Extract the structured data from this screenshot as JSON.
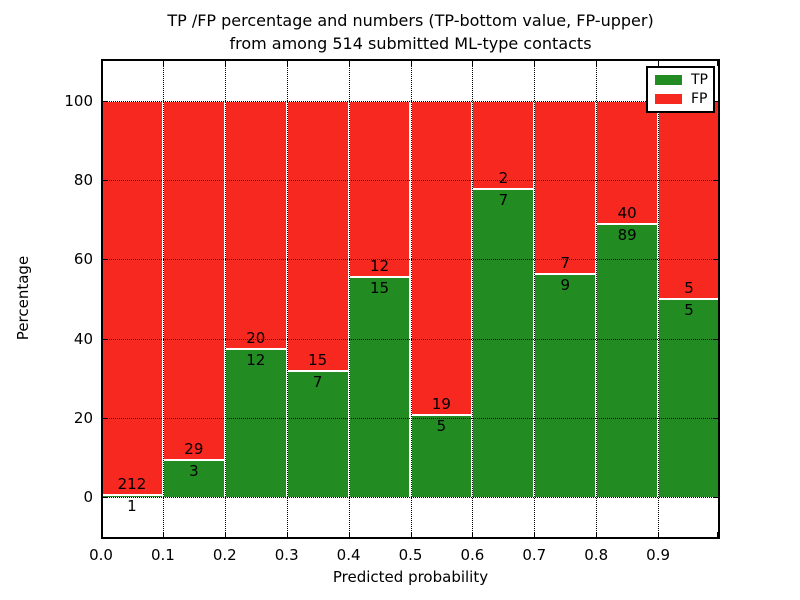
{
  "chart_data": {
    "type": "bar",
    "stacked": true,
    "title_line1": "TP /FP percentage and numbers (TP-bottom value, FP-upper)",
    "title_line2": "from among 514 submitted ML-type contacts",
    "xlabel": "Predicted probability",
    "ylabel": "Percentage",
    "x_tick_labels": [
      "0.0",
      "0.1",
      "0.2",
      "0.3",
      "0.4",
      "0.5",
      "0.6",
      "0.7",
      "0.8",
      "0.9"
    ],
    "y_ticks": [
      0,
      20,
      40,
      60,
      80,
      100
    ],
    "ylim": [
      -10.5,
      110.5
    ],
    "xlim": [
      0.0,
      1.0
    ],
    "bin_width": 0.1,
    "grid_style": "dotted",
    "bar_edge_color": "#ffffff",
    "annotation_note": "TP-bottom value, FP-upper",
    "legend": {
      "position": "upper-right",
      "entries": [
        {
          "label": "TP",
          "color": "#228b22"
        },
        {
          "label": "FP",
          "color": "#f7281f"
        }
      ]
    },
    "bins": [
      {
        "x0": 0.0,
        "tp": 1,
        "fp": 212
      },
      {
        "x0": 0.1,
        "tp": 3,
        "fp": 29
      },
      {
        "x0": 0.2,
        "tp": 12,
        "fp": 20
      },
      {
        "x0": 0.3,
        "tp": 7,
        "fp": 15
      },
      {
        "x0": 0.4,
        "tp": 15,
        "fp": 12
      },
      {
        "x0": 0.5,
        "tp": 5,
        "fp": 19
      },
      {
        "x0": 0.6,
        "tp": 7,
        "fp": 2
      },
      {
        "x0": 0.7,
        "tp": 9,
        "fp": 7
      },
      {
        "x0": 0.8,
        "tp": 89,
        "fp": 40
      },
      {
        "x0": 0.9,
        "tp": 5,
        "fp": 5
      }
    ]
  }
}
